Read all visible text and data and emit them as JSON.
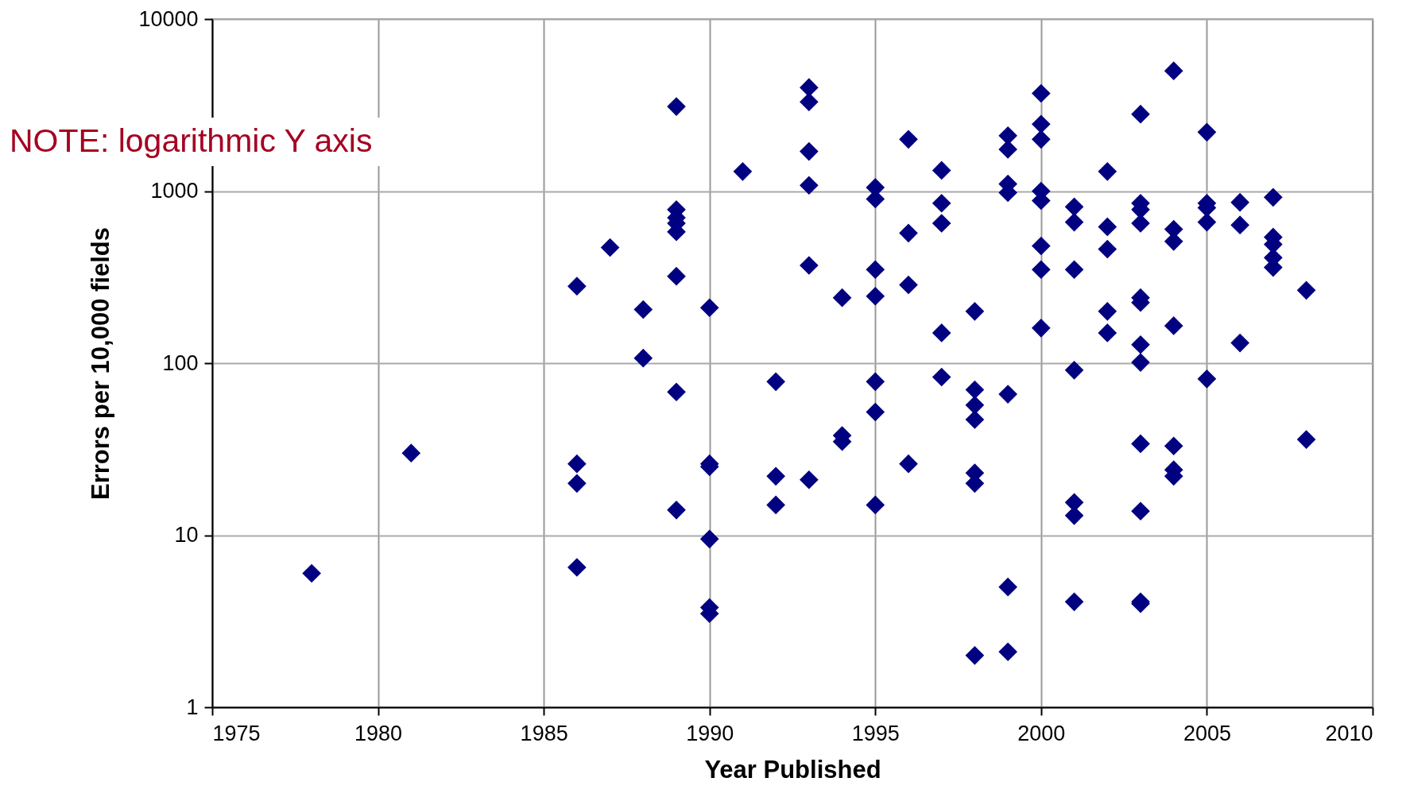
{
  "chart_data": {
    "type": "scatter",
    "xlabel": "Year Published",
    "ylabel": "Errors per 10,000 fields",
    "annotations": [
      "NOTE: logarithmic Y axis"
    ],
    "x": [
      1978,
      1981,
      1986,
      1986,
      1986,
      1986,
      1987,
      1988,
      1988,
      1989,
      1989,
      1989,
      1989,
      1989,
      1989,
      1989,
      1989,
      1990,
      1990,
      1990,
      1990,
      1990,
      1990,
      1991,
      1992,
      1992,
      1992,
      1993,
      1993,
      1993,
      1993,
      1993,
      1993,
      1994,
      1994,
      1994,
      1995,
      1995,
      1995,
      1995,
      1995,
      1995,
      1995,
      1996,
      1996,
      1996,
      1996,
      1997,
      1997,
      1997,
      1997,
      1997,
      1998,
      1998,
      1998,
      1998,
      1998,
      1998,
      1998,
      1999,
      1999,
      1999,
      1999,
      1999,
      1999,
      1999,
      2000,
      2000,
      2000,
      2000,
      2000,
      2000,
      2000,
      2000,
      2001,
      2001,
      2001,
      2001,
      2001,
      2001,
      2001,
      2002,
      2002,
      2002,
      2002,
      2002,
      2003,
      2003,
      2003,
      2003,
      2003,
      2003,
      2003,
      2003,
      2003,
      2003,
      2003,
      2003,
      2004,
      2004,
      2004,
      2004,
      2004,
      2004,
      2004,
      2005,
      2005,
      2005,
      2005,
      2005,
      2006,
      2006,
      2006,
      2007,
      2007,
      2007,
      2007,
      2007,
      2008,
      2008
    ],
    "series": [
      {
        "color": "#000080",
        "values": [
          6,
          30,
          280,
          26,
          20,
          6.5,
          470,
          205,
          107,
          3100,
          780,
          700,
          650,
          580,
          320,
          68,
          14,
          210,
          26,
          25,
          9.5,
          3.8,
          3.5,
          1300,
          78,
          22,
          15,
          4000,
          3300,
          1700,
          1080,
          370,
          21,
          240,
          38,
          35,
          1050,
          900,
          350,
          245,
          78,
          52,
          15,
          2000,
          570,
          285,
          26,
          1320,
          850,
          650,
          150,
          83,
          200,
          70,
          57,
          47,
          23,
          20,
          2,
          2100,
          1750,
          1100,
          980,
          66,
          5,
          2.1,
          3700,
          2450,
          2000,
          1000,
          880,
          480,
          350,
          160,
          810,
          660,
          350,
          91,
          15.5,
          13,
          4.1,
          1300,
          620,
          460,
          200,
          150,
          2800,
          850,
          780,
          650,
          240,
          225,
          128,
          101,
          34,
          13.8,
          4.1,
          4,
          5000,
          600,
          510,
          165,
          33,
          24,
          22,
          2200,
          850,
          800,
          660,
          81,
          860,
          635,
          131,
          920,
          540,
          490,
          410,
          360,
          265,
          36
        ]
      }
    ],
    "xlim": [
      1975,
      2010
    ],
    "xticks": [
      1975,
      1980,
      1985,
      1990,
      1995,
      2000,
      2005,
      2010
    ],
    "ylim": [
      1,
      10000
    ],
    "yticks": [
      1,
      10,
      100,
      1000,
      10000
    ],
    "log": "y",
    "grid": true,
    "marker": "diamond",
    "legend": false
  }
}
